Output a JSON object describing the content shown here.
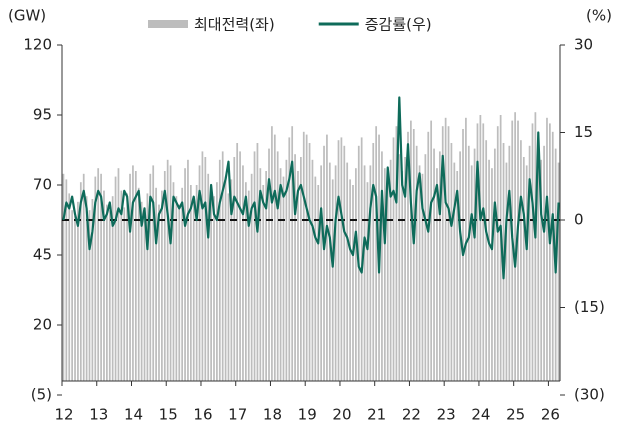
{
  "chart_data": {
    "type": "bar_line",
    "y_label": "(GW)",
    "y2_label": "(%)",
    "categories": [
      "12",
      null,
      null,
      null,
      null,
      null,
      null,
      null,
      null,
      null,
      null,
      null,
      "13",
      null,
      null,
      null,
      null,
      null,
      null,
      null,
      null,
      null,
      null,
      null,
      "14",
      null,
      null,
      null,
      null,
      null,
      null,
      null,
      null,
      null,
      null,
      null,
      "15",
      null,
      null,
      null,
      null,
      null,
      null,
      null,
      null,
      null,
      null,
      null,
      "16",
      null,
      null,
      null,
      null,
      null,
      null,
      null,
      null,
      null,
      null,
      null,
      "17",
      null,
      null,
      null,
      null,
      null,
      null,
      null,
      null,
      null,
      null,
      null,
      "18",
      null,
      null,
      null,
      null,
      null,
      null,
      null,
      null,
      null,
      null,
      null,
      "19",
      null,
      null,
      null,
      null,
      null,
      null,
      null,
      null,
      null,
      null,
      null,
      "20",
      null,
      null,
      null,
      null,
      null,
      null,
      null,
      null,
      null,
      null,
      null,
      "21",
      null,
      null,
      null,
      null,
      null,
      null,
      null,
      null,
      null,
      null,
      null,
      "22",
      null,
      null,
      null,
      null,
      null,
      null,
      null,
      null,
      null,
      null,
      null,
      "23",
      null,
      null,
      null,
      null,
      null,
      null,
      null,
      null,
      null,
      null,
      null,
      "24",
      null,
      null,
      null,
      null,
      null,
      null,
      null,
      null,
      null,
      null,
      null,
      "25",
      null,
      null,
      null,
      null,
      null,
      null,
      null,
      null,
      null,
      null,
      null,
      "26",
      null,
      null,
      null
    ],
    "series": [
      {
        "name": "최대전력(좌)",
        "type": "bar",
        "color": "#bdbdbd",
        "axis": "y",
        "values": [
          74,
          72,
          67,
          61,
          59,
          64,
          71,
          74,
          66,
          61,
          65,
          73,
          76,
          74,
          68,
          63,
          61,
          66,
          73,
          76,
          68,
          62,
          67,
          74,
          77,
          75,
          69,
          64,
          62,
          67,
          74,
          77,
          69,
          63,
          68,
          75,
          79,
          77,
          71,
          66,
          63,
          69,
          76,
          79,
          70,
          65,
          70,
          77,
          82,
          80,
          74,
          68,
          66,
          71,
          79,
          82,
          73,
          67,
          72,
          80,
          85,
          82,
          77,
          71,
          68,
          74,
          82,
          85,
          76,
          70,
          75,
          83,
          91,
          88,
          82,
          76,
          73,
          79,
          87,
          91,
          81,
          75,
          80,
          89,
          88,
          85,
          79,
          73,
          70,
          77,
          84,
          88,
          78,
          72,
          77,
          86,
          87,
          84,
          78,
          72,
          70,
          76,
          84,
          87,
          77,
          71,
          77,
          85,
          91,
          88,
          82,
          76,
          73,
          79,
          87,
          91,
          81,
          75,
          80,
          89,
          93,
          90,
          84,
          77,
          74,
          81,
          89,
          93,
          83,
          76,
          82,
          91,
          94,
          91,
          85,
          78,
          75,
          82,
          90,
          94,
          84,
          77,
          83,
          92,
          95,
          92,
          86,
          79,
          76,
          83,
          91,
          95,
          85,
          78,
          84,
          93,
          96,
          93,
          86,
          80,
          77,
          84,
          92,
          96,
          85,
          79,
          84,
          94,
          92,
          89,
          83,
          78
        ]
      },
      {
        "name": "증감률(우)",
        "type": "line",
        "color": "#0e6b5a",
        "axis": "y2",
        "values": [
          0,
          3,
          2,
          4,
          1,
          -1,
          3,
          5,
          2,
          -5,
          -2,
          3,
          5,
          4,
          0,
          1,
          3,
          -1,
          0,
          2,
          1,
          5,
          4,
          -2,
          3,
          4,
          5,
          -1,
          2,
          -5,
          4,
          3,
          -4,
          1,
          2,
          5,
          1,
          -4,
          4,
          3,
          2,
          3,
          -1,
          1,
          2,
          4,
          0,
          5,
          2,
          3,
          -3,
          6,
          1,
          0,
          3,
          5,
          7,
          10,
          1,
          4,
          3,
          2,
          1,
          4,
          -1,
          2,
          3,
          -2,
          5,
          3,
          2,
          7,
          3,
          5,
          2,
          6,
          4,
          5,
          7,
          10,
          1,
          5,
          6,
          4,
          2,
          0,
          -1,
          -3,
          -4,
          2,
          -5,
          -1,
          -3,
          -8,
          0,
          4,
          1,
          -2,
          -3,
          -5,
          -6,
          -2,
          -8,
          -9,
          -3,
          -5,
          2,
          6,
          4,
          -9,
          5,
          -4,
          9,
          4,
          5,
          3,
          21,
          6,
          4,
          13,
          3,
          -4,
          5,
          8,
          2,
          0,
          -2,
          3,
          4,
          6,
          1,
          11,
          3,
          2,
          -1,
          2,
          5,
          -2,
          -6,
          -4,
          -3,
          1,
          -3,
          10,
          0,
          2,
          -2,
          -4,
          -5,
          3,
          -2,
          -1,
          -10,
          0,
          5,
          -3,
          -8,
          -1,
          4,
          1,
          -5,
          7,
          3,
          -3,
          15,
          1,
          -2,
          4,
          -4,
          1,
          -9,
          3
        ]
      }
    ],
    "ylim": [
      -5,
      120
    ],
    "yticks": [
      {
        "value": -5,
        "label": "(5)"
      },
      20,
      45,
      70,
      95,
      120
    ],
    "y2lim": [
      -30,
      30
    ],
    "y2ticks": [
      {
        "value": -30,
        "label": "(30)"
      },
      {
        "value": -15,
        "label": "(15)"
      },
      0,
      15,
      30
    ],
    "legend": "top",
    "zero_line_dashed": true
  }
}
